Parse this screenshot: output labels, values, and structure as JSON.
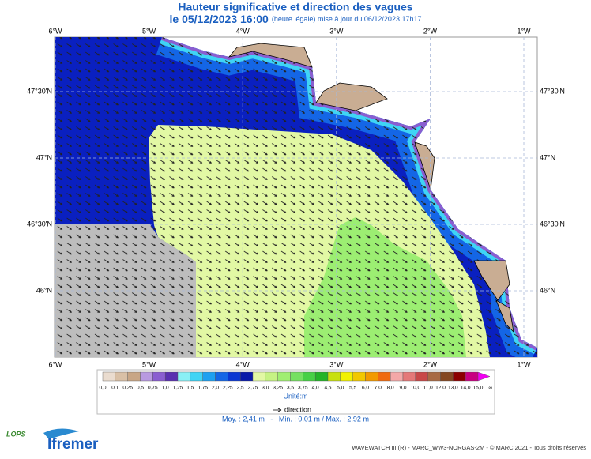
{
  "header": {
    "title": "Hauteur significative et direction des vagues",
    "date": "le 05/12/2023 16:00",
    "note": "(heure légale) mise à jour du 06/12/2023 17h17"
  },
  "map": {
    "lon_labels": [
      "6°W",
      "5°W",
      "4°W",
      "3°W",
      "2°W",
      "1°W"
    ],
    "lat_labels": [
      "47°30'N",
      "47°N",
      "46°30'N",
      "46°N"
    ]
  },
  "legend": {
    "labels": [
      "0,0",
      "0,1",
      "0,25",
      "0,5",
      "0,75",
      "1,0",
      "1,25",
      "1,5",
      "1,75",
      "2,0",
      "2,25",
      "2,5",
      "2,75",
      "3,0",
      "3,25",
      "3,5",
      "3,75",
      "4,0",
      "4,5",
      "5,0",
      "5,5",
      "6,0",
      "7,0",
      "8,0",
      "9,0",
      "10,0",
      "11,0",
      "12,0",
      "13,0",
      "14,0",
      "15,0",
      "∞"
    ],
    "colors": [
      "#eadccf",
      "#d9c0a6",
      "#c8a686",
      "#b89ae0",
      "#8a5ed0",
      "#5a30b0",
      "#8af0f5",
      "#3fd4f5",
      "#1ea0f0",
      "#1466e6",
      "#0a36d2",
      "#0818a8",
      "#e2f8a4",
      "#c6f284",
      "#a0ee72",
      "#76e062",
      "#48d046",
      "#24b428",
      "#c8e010",
      "#f2f200",
      "#f2c800",
      "#f29a00",
      "#f06a10",
      "#f4a8a8",
      "#e47878",
      "#c84848",
      "#a86a44",
      "#844822",
      "#8c0000",
      "#c80080",
      "#f000f0"
    ],
    "unit": "Unité:m",
    "direction": "direction",
    "stats": "Moy. : 2,41 m   -   Min. : 0,01 m / Max. : 2,92 m"
  },
  "footer": {
    "credit": "WAVEWATCH III (R) - MARC_WW3-NORGAS-2M - © MARC 2021 - Tous droits réservés",
    "logo_small": "LOPS",
    "logo": "Ifremer"
  }
}
